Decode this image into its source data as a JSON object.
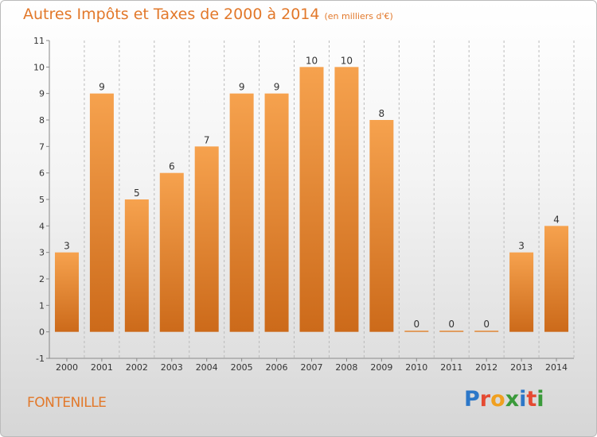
{
  "page": {
    "title": "Autres Impôts et Taxes de 2000 à 2014",
    "subtitle": "(en milliers d'€)",
    "commune": "FONTENILLE",
    "logo": "Proxiti"
  },
  "colors": {
    "bar_light": "#f6a24e",
    "bar_dark": "#cc6a1a",
    "title": "#e2782a",
    "grid": "#bbbbbb"
  },
  "chart_data": {
    "type": "bar",
    "title": "Autres Impôts et Taxes de 2000 à 2014",
    "subtitle": "(en milliers d'€)",
    "xlabel": "",
    "ylabel": "",
    "ylim": [
      -1,
      11
    ],
    "y_ticks": [
      "-1",
      "0",
      "1",
      "2",
      "3",
      "4",
      "5",
      "6",
      "7",
      "8",
      "9",
      "10",
      "11"
    ],
    "grid": "vertical dashed",
    "categories": [
      "2000",
      "2001",
      "2002",
      "2003",
      "2004",
      "2005",
      "2006",
      "2007",
      "2008",
      "2009",
      "2010",
      "2011",
      "2012",
      "2013",
      "2014"
    ],
    "values": [
      3,
      9,
      5,
      6,
      7,
      9,
      9,
      10,
      10,
      8,
      0,
      0,
      0,
      3,
      4
    ],
    "value_labels": [
      "3",
      "9",
      "5",
      "6",
      "7",
      "9",
      "9",
      "10",
      "10",
      "8",
      "0",
      "0",
      "0",
      "3",
      "4"
    ]
  }
}
